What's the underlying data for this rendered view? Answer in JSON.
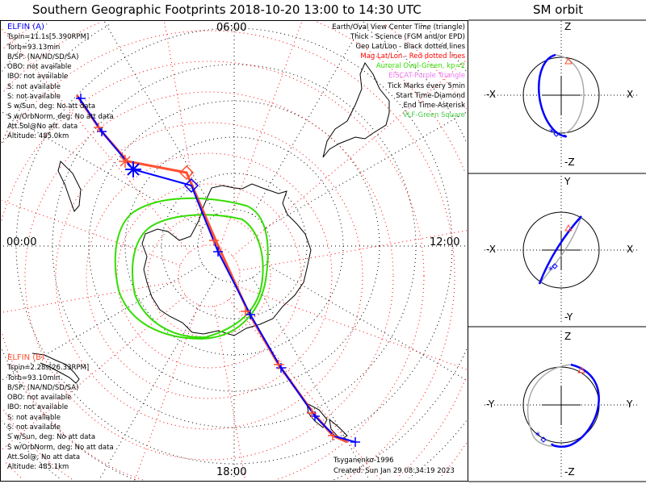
{
  "title": "Southern Geographic Footprints 2018-10-20 13:00 to 14:30 UTC",
  "orbit_title": "SM orbit",
  "elfin_a": {
    "name": "ELFIN (A)",
    "color": "#0000ff",
    "lines": [
      "Tspin=11.1s[5.390RPM]",
      "Torb=93.13min",
      "B/SP: (NA/ND/SD/SA)",
      "OBO: not available",
      "IBO: not available",
      "S: not available",
      "S: not available",
      "S w/Sun, deg: No att data",
      "S w/OrbNorm, deg: No att data",
      "Att.Sol@No att. data",
      "Altitude: 485.0km"
    ]
  },
  "elfin_b": {
    "name": "ELFIN (B)",
    "color": "#ff4030",
    "lines": [
      "Tspin=2.28s[26.33RPM]",
      "Torb=93.10min",
      "B/SP: (NA/ND/SD/SA)",
      "OBO: not available",
      "IBO: not available",
      "S: not available",
      "S: not available",
      "S w/Sun, deg: No att data",
      "S w/OrbNorm, deg: No att data",
      "Att.Sol@: No att data",
      "Altitude: 485.1km"
    ]
  },
  "legend": [
    {
      "text": "Earth/Oval View Center Time (triangle)",
      "color": "#000000"
    },
    {
      "text": "Thick - Science (FGM and/or EPD)",
      "color": "#000000"
    },
    {
      "text": "Geo Lat/Lon - Black dotted lines",
      "color": "#000000"
    },
    {
      "text": "Mag Lat/Lon - Red dotted lines",
      "color": "#ff0000"
    },
    {
      "text": "Auroral Oval-Green, kp=2",
      "color": "#33dd00"
    },
    {
      "text": "EISCAT-Purple Triangle",
      "color": "#ee77ee"
    },
    {
      "text": "Tick Marks every 5min",
      "color": "#000000"
    },
    {
      "text": "Start Time-Diamond",
      "color": "#000000"
    },
    {
      "text": "End Time-Asterisk",
      "color": "#000000"
    },
    {
      "text": "VLF-Green Square",
      "color": "#44cc44"
    }
  ],
  "hours": {
    "top": "06:00",
    "left": "00:00",
    "right": "12:00",
    "bottom": "18:00"
  },
  "footer": {
    "model": "Tsyganenko-1996",
    "created": "Created: Sun Jan 29 08:34:19 2023"
  },
  "orbit_panels": [
    {
      "top": "Z",
      "bottom": "-Z",
      "left": "-X",
      "right": "X"
    },
    {
      "top": "Y",
      "bottom": "-Y",
      "left": "-X",
      "right": "X"
    },
    {
      "top": "Z",
      "bottom": "-Z",
      "left": "-Y",
      "right": "Y"
    }
  ]
}
